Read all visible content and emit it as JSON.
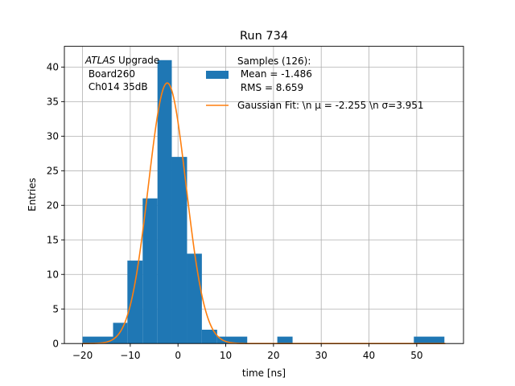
{
  "chart_data": {
    "type": "bar",
    "title": "Run 734",
    "xlabel": "time [ns]",
    "ylabel": "Entries",
    "xlim": [
      -23.8,
      59.8
    ],
    "ylim": [
      0,
      43
    ],
    "grid": true,
    "xticks": [
      -20,
      -10,
      0,
      10,
      20,
      30,
      40,
      50
    ],
    "yticks": [
      0,
      5,
      10,
      15,
      20,
      25,
      30,
      35,
      40
    ],
    "annotation": {
      "italic": "ATLAS",
      "line1_rest": " Upgrade",
      "line2": " Board260",
      "line3": " Ch014 35dB"
    },
    "legend": {
      "position": "top-right",
      "samples_line1": "Samples (126):",
      "samples_line2": " Mean = -1.486",
      "samples_line3": " RMS = 8.659",
      "fit_label": "Gaussian Fit: \\n μ = -2.255 \\n σ=3.951"
    },
    "histogram": {
      "name": "Samples",
      "bin_edges": [
        -20,
        -13.6,
        -10.6,
        -7.4,
        -4.3,
        -1.3,
        1.9,
        5.0,
        8.2,
        14.5,
        20.8,
        24.0,
        49.4,
        55.8
      ],
      "counts": [
        1,
        3,
        12,
        21,
        41,
        27,
        13,
        2,
        1,
        0,
        1,
        0,
        1
      ]
    },
    "fit": {
      "name": "Gaussian Fit",
      "amplitude": 37.7,
      "mean": -2.255,
      "sigma": 3.951,
      "x_range": [
        -20,
        56
      ]
    },
    "colors": {
      "hist": "#1f77b4",
      "fit": "#ff7f0e",
      "grid": "#b0b0b0"
    }
  }
}
